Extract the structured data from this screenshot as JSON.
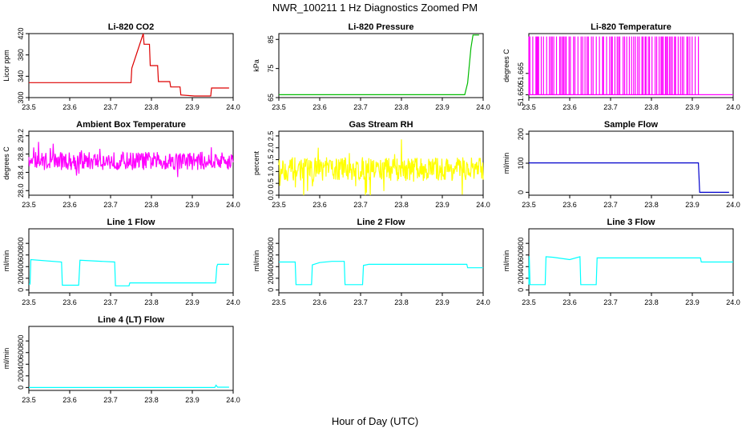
{
  "main_title": "NWR_100211  1 Hz Diagnostics Zoomed PM",
  "x_axis_title": "Hour of Day (UTC)",
  "chart_data": [
    {
      "type": "line",
      "title": "Li-820 CO2",
      "xlabel": "",
      "ylabel": "Licor ppm",
      "color": "#dd0000",
      "xlim": [
        23.5,
        24.0
      ],
      "ylim": [
        300,
        420
      ],
      "xticks": [
        "23.5",
        "23.6",
        "23.7",
        "23.8",
        "23.9",
        "24.0"
      ],
      "yticks": [
        300,
        340,
        380,
        420
      ],
      "ytick_labels": [
        "300",
        "340",
        "380",
        "420"
      ],
      "series": [
        {
          "x": [
            23.5,
            23.75,
            23.752,
            23.78,
            23.782,
            23.795,
            23.797,
            23.815,
            23.817,
            23.845,
            23.847,
            23.87,
            23.872,
            23.905,
            23.92,
            23.945,
            23.947,
            23.96,
            23.962,
            23.99
          ],
          "values": [
            328,
            328,
            355,
            420,
            400,
            400,
            360,
            360,
            330,
            330,
            320,
            320,
            305,
            303,
            303,
            303,
            318,
            318,
            318,
            318
          ]
        }
      ]
    },
    {
      "type": "line",
      "title": "Li-820 Pressure",
      "xlabel": "",
      "ylabel": "kPa",
      "color": "#00bb00",
      "xlim": [
        23.5,
        24.0
      ],
      "ylim": [
        65,
        87
      ],
      "xticks": [
        "23.5",
        "23.6",
        "23.7",
        "23.8",
        "23.9",
        "24.0"
      ],
      "yticks": [
        65,
        75,
        85
      ],
      "ytick_labels": [
        "65",
        "75",
        "85"
      ],
      "series": [
        {
          "x": [
            23.5,
            23.94,
            23.95,
            23.955,
            23.962,
            23.97,
            23.975,
            23.98,
            23.99
          ],
          "values": [
            66,
            66,
            66,
            66,
            70,
            82,
            86.5,
            86.5,
            86.5
          ]
        }
      ]
    },
    {
      "type": "line",
      "title": "Li-820 Temperature",
      "xlabel": "",
      "ylabel": "degrees C",
      "color": "#ff00ff",
      "xlim": [
        23.5,
        24.0
      ],
      "ylim": [
        51.648,
        51.693
      ],
      "xticks": [
        "23.5",
        "23.6",
        "23.7",
        "23.8",
        "23.9",
        "24.0"
      ],
      "yticks": [
        51.65,
        51.665
      ],
      "ytick_labels": [
        "51.650",
        "51.665"
      ],
      "levels": [
        51.65,
        51.691
      ],
      "pattern": "binary-switching",
      "dense_until": 23.915
    },
    {
      "type": "line",
      "title": "Ambient Box Temperature",
      "xlabel": "",
      "ylabel": "degrees C",
      "color": "#ff00ff",
      "xlim": [
        23.5,
        24.0
      ],
      "ylim": [
        27.9,
        29.3
      ],
      "xticks": [
        "23.5",
        "23.6",
        "23.7",
        "23.8",
        "23.9",
        "24.0"
      ],
      "yticks": [
        28.0,
        28.4,
        28.8,
        29.2
      ],
      "ytick_labels": [
        "28.0",
        "28.4",
        "28.8",
        "29.2"
      ],
      "mean": 28.65,
      "band": [
        28.45,
        28.85
      ],
      "pattern": "noise"
    },
    {
      "type": "line",
      "title": "Gas Stream RH",
      "xlabel": "",
      "ylabel": "percent",
      "color": "#ffff00",
      "xlim": [
        23.5,
        24.0
      ],
      "ylim": [
        0,
        2.7
      ],
      "xticks": [
        "23.5",
        "23.6",
        "23.7",
        "23.8",
        "23.9",
        "24.0"
      ],
      "yticks": [
        0.0,
        0.5,
        1.0,
        1.5,
        2.0,
        2.5
      ],
      "ytick_labels": [
        "0.0",
        "0.5",
        "1.0",
        "1.5",
        "2.0",
        "2.5"
      ],
      "mean": 1.1,
      "band": [
        0.6,
        1.6
      ],
      "pattern": "noise"
    },
    {
      "type": "line",
      "title": "Sample Flow",
      "xlabel": "",
      "ylabel": "ml/min",
      "color": "#0000cc",
      "xlim": [
        23.5,
        24.0
      ],
      "ylim": [
        -10,
        210
      ],
      "xticks": [
        "23.5",
        "23.6",
        "23.7",
        "23.8",
        "23.9",
        "24.0"
      ],
      "yticks": [
        0,
        100,
        200
      ],
      "ytick_labels": [
        "0",
        "100",
        "200"
      ],
      "series": [
        {
          "x": [
            23.5,
            23.915,
            23.918,
            23.99
          ],
          "values": [
            101,
            101,
            0,
            0
          ]
        }
      ]
    },
    {
      "type": "line",
      "title": "Line 1 Flow",
      "xlabel": "",
      "ylabel": "ml/min",
      "color": "#00ffff",
      "xlim": [
        23.5,
        24.0
      ],
      "ylim": [
        -50,
        1050
      ],
      "xticks": [
        "23.5",
        "23.6",
        "23.7",
        "23.8",
        "23.9",
        "24.0"
      ],
      "yticks": [
        0,
        200,
        400,
        600,
        800
      ],
      "ytick_labels": [
        "0",
        "200",
        "400",
        "600",
        "800"
      ],
      "series": [
        {
          "x": [
            23.5,
            23.503,
            23.505,
            23.58,
            23.582,
            23.622,
            23.625,
            23.71,
            23.712,
            23.745,
            23.747,
            23.955,
            23.957,
            23.96,
            23.962,
            23.99
          ],
          "values": [
            100,
            100,
            520,
            480,
            80,
            80,
            510,
            480,
            70,
            70,
            120,
            120,
            120,
            400,
            440,
            440
          ]
        }
      ]
    },
    {
      "type": "line",
      "title": "Line 2 Flow",
      "xlabel": "",
      "ylabel": "ml/min",
      "color": "#00ffff",
      "xlim": [
        23.5,
        24.0
      ],
      "ylim": [
        -50,
        1050
      ],
      "xticks": [
        "23.5",
        "23.6",
        "23.7",
        "23.8",
        "23.9",
        "24.0"
      ],
      "yticks": [
        0,
        200,
        400,
        600,
        800
      ],
      "ytick_labels": [
        "0",
        "200",
        "400",
        "600",
        "800"
      ],
      "series": [
        {
          "x": [
            23.5,
            23.54,
            23.542,
            23.58,
            23.582,
            23.6,
            23.63,
            23.66,
            23.662,
            23.705,
            23.707,
            23.72,
            23.96,
            23.962,
            24.0
          ],
          "values": [
            480,
            480,
            90,
            90,
            430,
            470,
            490,
            490,
            90,
            90,
            420,
            440,
            440,
            380,
            380
          ]
        }
      ]
    },
    {
      "type": "line",
      "title": "Line 3 Flow",
      "xlabel": "",
      "ylabel": "ml/min",
      "color": "#00ffff",
      "xlim": [
        23.5,
        24.0
      ],
      "ylim": [
        -50,
        1050
      ],
      "xticks": [
        "23.5",
        "23.6",
        "23.7",
        "23.8",
        "23.9",
        "24.0"
      ],
      "yticks": [
        0,
        200,
        400,
        600,
        800
      ],
      "ytick_labels": [
        "0",
        "200",
        "400",
        "600",
        "800"
      ],
      "series": [
        {
          "x": [
            23.5,
            23.501,
            23.503,
            23.54,
            23.542,
            23.56,
            23.6,
            23.625,
            23.627,
            23.665,
            23.667,
            23.92,
            23.922,
            24.0
          ],
          "values": [
            90,
            580,
            90,
            90,
            570,
            560,
            520,
            570,
            90,
            90,
            550,
            550,
            480,
            480
          ]
        }
      ]
    },
    {
      "type": "line",
      "title": "Line 4 (LT) Flow",
      "xlabel": "",
      "ylabel": "ml/min",
      "color": "#00ffff",
      "xlim": [
        23.5,
        24.0
      ],
      "ylim": [
        -50,
        1050
      ],
      "xticks": [
        "23.5",
        "23.6",
        "23.7",
        "23.8",
        "23.9",
        "24.0"
      ],
      "yticks": [
        0,
        200,
        400,
        600,
        800
      ],
      "ytick_labels": [
        "0",
        "200",
        "400",
        "600",
        "800"
      ],
      "series": [
        {
          "x": [
            23.5,
            23.955,
            23.958,
            23.962,
            23.99
          ],
          "values": [
            0,
            0,
            40,
            5,
            5
          ]
        }
      ]
    }
  ]
}
